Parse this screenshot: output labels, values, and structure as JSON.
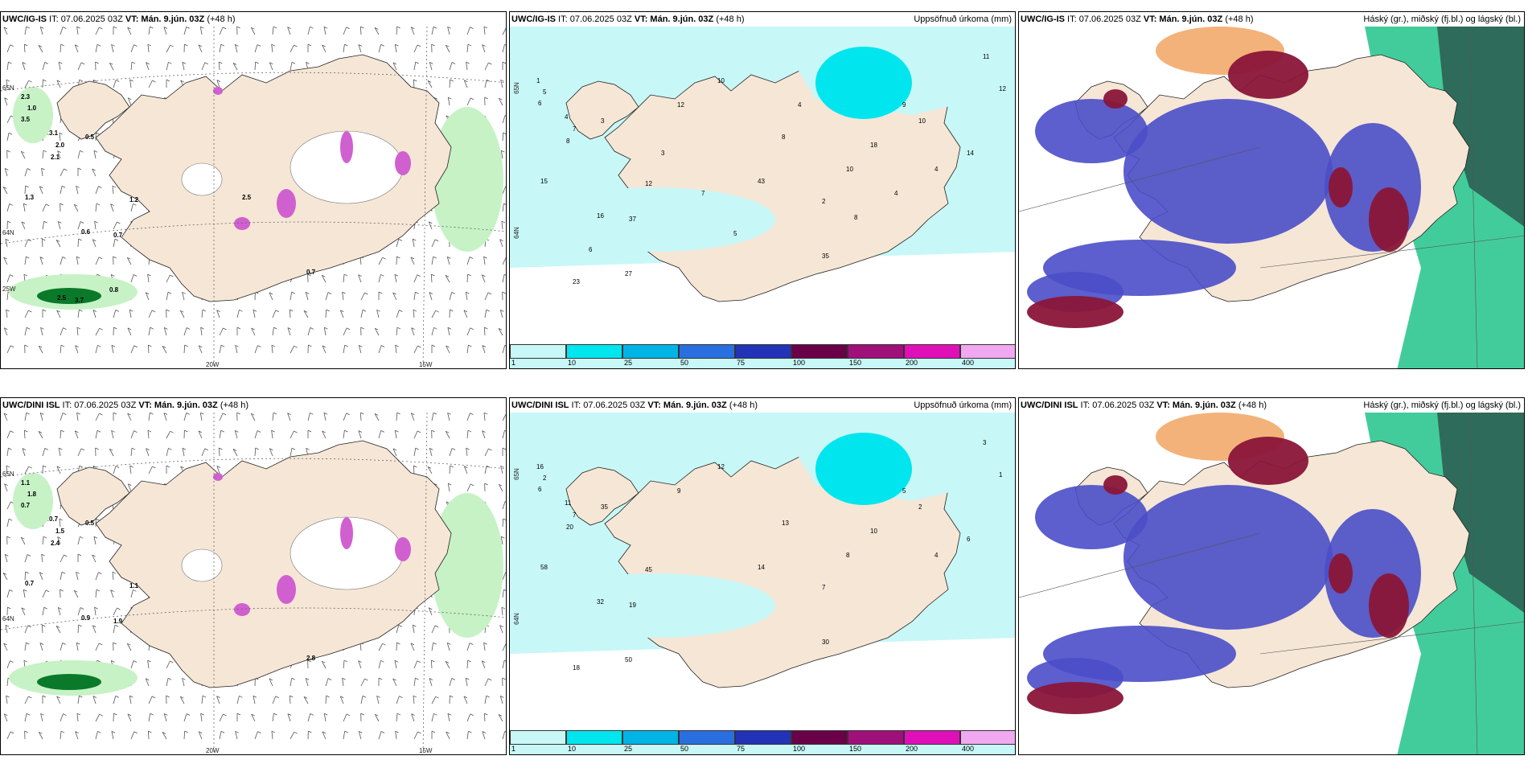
{
  "rows": [
    {
      "model": "UWC/IG-IS",
      "panels": [
        {
          "model_label": "UWC/IG-IS",
          "it_label": " IT: 07.06.2025 03Z ",
          "vt_label": "VT: Mán. 9.jún. 03Z",
          "lead": " (+48 h)",
          "right_title": "",
          "values": [
            "2.3",
            "1.0",
            "3.5",
            "3.1",
            "2.0",
            "2.1",
            "0.5",
            "1.3",
            "1.2",
            "0.6",
            "0.7",
            "0.7",
            "0.8",
            "2.5",
            "3.7",
            "2.5"
          ],
          "axis_labels": [
            "20W",
            "15W",
            "65N",
            "64N",
            "25W"
          ]
        },
        {
          "model_label": "UWC/IG-IS",
          "it_label": " IT: 07.06.2025 03Z ",
          "vt_label": "VT: Mán. 9.jún. 03Z",
          "lead": " (+48 h)",
          "right_title": "Uppsöfnuð úrkoma (mm)",
          "values": [
            "1",
            "5",
            "6",
            "4",
            "7",
            "8",
            "3",
            "15",
            "12",
            "16",
            "37",
            "35",
            "27",
            "23",
            "43",
            "18",
            "10",
            "10",
            "12",
            "8",
            "9",
            "10",
            "4",
            "14",
            "11",
            "12",
            "2",
            "5",
            "6",
            "3",
            "8",
            "4",
            "7",
            "4"
          ],
          "axis_labels": [
            "65N",
            "64N"
          ]
        },
        {
          "model_label": "UWC/IG-IS",
          "it_label": " IT: 07.06.2025 03Z ",
          "vt_label": "VT: Mán. 9.jún. 03Z",
          "lead": " (+48 h)",
          "right_title": "Háský (gr.), miðský (fj.bl.) og lágský (bl.)",
          "values": [],
          "axis_labels": []
        }
      ]
    },
    {
      "model": "UWC/DINI ISL",
      "panels": [
        {
          "model_label": "UWC/DINI ISL",
          "it_label": " IT: 07.06.2025 03Z ",
          "vt_label": "VT: Mán. 9.jún. 03Z",
          "lead": " (+48 h)",
          "right_title": "",
          "values": [
            "1.1",
            "1.8",
            "0.7",
            "0.7",
            "1.5",
            "2.4",
            "0.5",
            "0.7",
            "1.1",
            "0.9",
            "1.9",
            "2.8"
          ],
          "axis_labels": [
            "20W",
            "15W",
            "65N",
            "64N"
          ]
        },
        {
          "model_label": "UWC/DINI ISL",
          "it_label": " IT: 07.06.2025 03Z ",
          "vt_label": "VT: Mán. 9.jún. 03Z",
          "lead": " (+48 h)",
          "right_title": "Uppsöfnuð úrkoma (mm)",
          "values": [
            "16",
            "2",
            "6",
            "11",
            "7",
            "20",
            "35",
            "58",
            "45",
            "32",
            "19",
            "30",
            "50",
            "18",
            "14",
            "10",
            "12",
            "8",
            "9",
            "13",
            "5",
            "2",
            "4",
            "6",
            "3",
            "1",
            "7"
          ],
          "axis_labels": [
            "65N",
            "64N"
          ]
        },
        {
          "model_label": "UWC/DINI ISL",
          "it_label": " IT: 07.06.2025 03Z ",
          "vt_label": "VT: Mán. 9.jún. 03Z",
          "lead": " (+48 h)",
          "right_title": "Háský (gr.), miðský (fj.bl.) og lágský (bl.)",
          "values": [],
          "axis_labels": []
        }
      ]
    }
  ],
  "precip_legend": {
    "ticks": [
      "1",
      "10",
      "25",
      "50",
      "75",
      "100",
      "150",
      "200",
      "400"
    ],
    "colors": [
      "#c8f7f7",
      "#00e5ee",
      "#00b4e6",
      "#2a6fe0",
      "#2233b8",
      "#6a0048",
      "#a0107a",
      "#e010b8",
      "#f0a8f0"
    ]
  },
  "colors": {
    "land": "#f5e6d6",
    "precip_light": "#c8f7f7",
    "precip_mid": "#00e5ee",
    "wind_green_light": "#c6f2c6",
    "wind_green_dark": "#0a7a2a",
    "magenta": "#d060d0",
    "cloud_high_green": "#22c38a",
    "cloud_dark_green": "#2f6b5a",
    "cloud_mid_blue": "#4a4ec8",
    "cloud_low_red": "#8a1538",
    "cloud_orange": "#f3b27a"
  }
}
